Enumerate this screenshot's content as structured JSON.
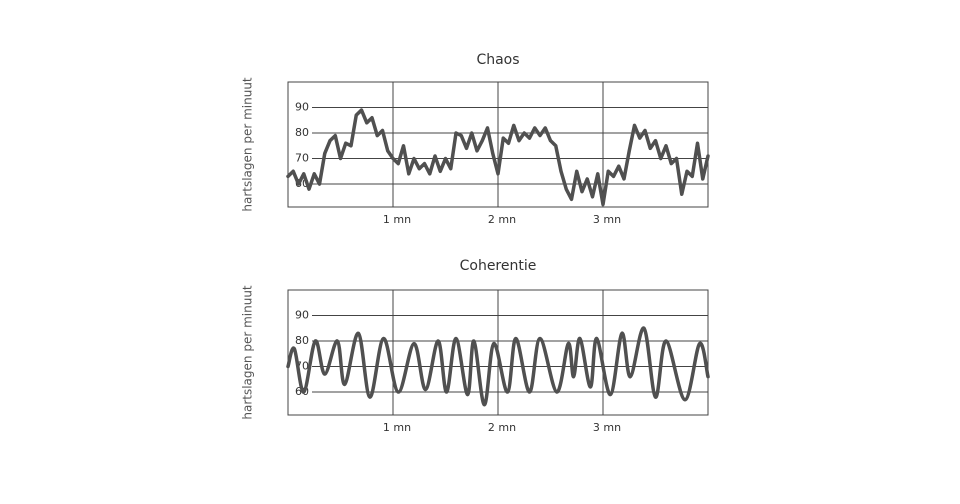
{
  "chart_data": [
    {
      "type": "line",
      "title": "Chaos",
      "y_label": "hartslagen per minuut",
      "color": "#505050",
      "smooth": false,
      "grid": true,
      "xlim": [
        0,
        4
      ],
      "ylim": [
        51,
        100
      ],
      "xticks": [
        {
          "value": 1,
          "label": "1 mn"
        },
        {
          "value": 2,
          "label": "2 mn"
        },
        {
          "value": 3,
          "label": "3 mn"
        }
      ],
      "yticks": [
        60,
        70,
        80,
        90
      ],
      "x": [
        0,
        0.05,
        0.1,
        0.15,
        0.2,
        0.25,
        0.3,
        0.35,
        0.4,
        0.45,
        0.5,
        0.55,
        0.6,
        0.65,
        0.7,
        0.75,
        0.8,
        0.85,
        0.9,
        0.95,
        1,
        1.05,
        1.1,
        1.15,
        1.2,
        1.25,
        1.3,
        1.35,
        1.4,
        1.45,
        1.5,
        1.55,
        1.6,
        1.65,
        1.7,
        1.75,
        1.8,
        1.85,
        1.9,
        1.95,
        2,
        2.05,
        2.1,
        2.15,
        2.2,
        2.25,
        2.3,
        2.35,
        2.4,
        2.45,
        2.5,
        2.55,
        2.6,
        2.65,
        2.7,
        2.75,
        2.8,
        2.85,
        2.9,
        2.95,
        3,
        3.05,
        3.1,
        3.15,
        3.2,
        3.25,
        3.3,
        3.35,
        3.4,
        3.45,
        3.5,
        3.55,
        3.6,
        3.65,
        3.7,
        3.75,
        3.8,
        3.85,
        3.9,
        3.95,
        4
      ],
      "values": [
        63,
        65,
        60,
        64,
        58,
        64,
        60,
        72,
        77,
        79,
        70,
        76,
        75,
        87,
        89,
        84,
        86,
        79,
        81,
        73,
        70,
        68,
        75,
        64,
        70,
        66,
        68,
        64,
        71,
        65,
        70,
        66,
        80,
        79,
        74,
        80,
        73,
        77,
        82,
        72,
        64,
        78,
        76,
        83,
        77,
        80,
        78,
        82,
        79,
        82,
        77,
        75,
        65,
        58,
        54,
        65,
        57,
        62,
        55,
        64,
        52,
        65,
        63,
        67,
        62,
        73,
        83,
        78,
        81,
        74,
        77,
        70,
        75,
        68,
        70,
        56,
        65,
        63,
        76,
        62,
        71
      ]
    },
    {
      "type": "line",
      "title": "Coherentie",
      "y_label": "hartslagen per minuut",
      "color": "#505050",
      "smooth": true,
      "grid": true,
      "xlim": [
        0,
        4
      ],
      "ylim": [
        51,
        100
      ],
      "xticks": [
        {
          "value": 1,
          "label": "1 mn"
        },
        {
          "value": 2,
          "label": "2 mn"
        },
        {
          "value": 3,
          "label": "3 mn"
        }
      ],
      "yticks": [
        60,
        70,
        80,
        90
      ],
      "x": [
        0,
        0.06,
        0.15,
        0.26,
        0.35,
        0.47,
        0.54,
        0.67,
        0.78,
        0.91,
        1.05,
        1.2,
        1.31,
        1.43,
        1.51,
        1.6,
        1.71,
        1.77,
        1.87,
        1.96,
        2.09,
        2.17,
        2.3,
        2.4,
        2.56,
        2.67,
        2.72,
        2.78,
        2.88,
        2.94,
        3.07,
        3.18,
        3.26,
        3.39,
        3.5,
        3.6,
        3.78,
        3.92,
        4
      ],
      "values": [
        70,
        77,
        60,
        80,
        67,
        80,
        63,
        83,
        58,
        81,
        60,
        79,
        61,
        80,
        60,
        81,
        59,
        80,
        55,
        79,
        60,
        81,
        60,
        81,
        60,
        79,
        66,
        81,
        62,
        81,
        59,
        83,
        66,
        85,
        58,
        80,
        57,
        79,
        66
      ]
    }
  ]
}
